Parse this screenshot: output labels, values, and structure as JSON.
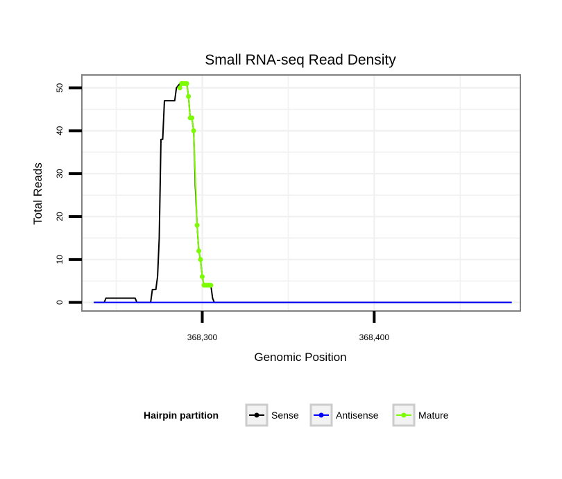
{
  "chart_data": {
    "type": "line",
    "title": "Small RNA-seq Read Density",
    "xlabel": "Genomic Position",
    "ylabel": "Total Reads",
    "xlim": [
      368230,
      368485
    ],
    "ylim": [
      -2,
      53
    ],
    "x_ticks": [
      {
        "value": 368300,
        "label": "368,300"
      },
      {
        "value": 368400,
        "label": "368,400"
      }
    ],
    "y_ticks": [
      {
        "value": 0,
        "label": "0"
      },
      {
        "value": 10,
        "label": "10"
      },
      {
        "value": 20,
        "label": "20"
      },
      {
        "value": 30,
        "label": "30"
      },
      {
        "value": 40,
        "label": "40"
      },
      {
        "value": 50,
        "label": "50"
      }
    ],
    "grid": true,
    "legend": {
      "position": "bottom",
      "title": "Hairpin partition",
      "entries": [
        {
          "name": "Sense",
          "color": "#000000"
        },
        {
          "name": "Antisense",
          "color": "#0000ff"
        },
        {
          "name": "Mature",
          "color": "#7cfc00"
        }
      ]
    },
    "series": [
      {
        "name": "Sense",
        "color": "#000000",
        "x": [
          368237,
          368243,
          368244,
          368261,
          368262,
          368270,
          368271,
          368273,
          368274,
          368275,
          368276,
          368277,
          368278,
          368279,
          368280,
          368284,
          368285,
          368287,
          368288,
          368291,
          368292,
          368293,
          368294,
          368295,
          368296,
          368297,
          368298,
          368299,
          368300,
          368301,
          368302,
          368303,
          368304,
          368305,
          368306,
          368307,
          368308,
          368480
        ],
        "y": [
          0,
          0,
          1,
          1,
          0,
          0,
          3,
          3,
          6,
          15,
          38,
          38,
          47,
          47,
          47,
          47,
          50,
          51,
          51,
          51,
          48,
          43,
          43,
          40,
          27,
          18,
          12,
          10,
          6,
          4,
          4,
          4,
          4,
          4,
          1,
          0,
          0,
          0
        ]
      },
      {
        "name": "Antisense",
        "color": "#0000ff",
        "x": [
          368237,
          368480
        ],
        "y": [
          0,
          0
        ]
      },
      {
        "name": "Mature",
        "color": "#7cfc00",
        "x": [
          368287,
          368288,
          368289,
          368290,
          368291,
          368292,
          368293,
          368294,
          368295,
          368297,
          368298,
          368299,
          368300,
          368301,
          368302,
          368303,
          368304,
          368305
        ],
        "y": [
          50,
          51,
          51,
          51,
          51,
          48,
          43,
          43,
          40,
          18,
          12,
          10,
          6,
          4,
          4,
          4,
          4,
          4
        ]
      }
    ]
  }
}
